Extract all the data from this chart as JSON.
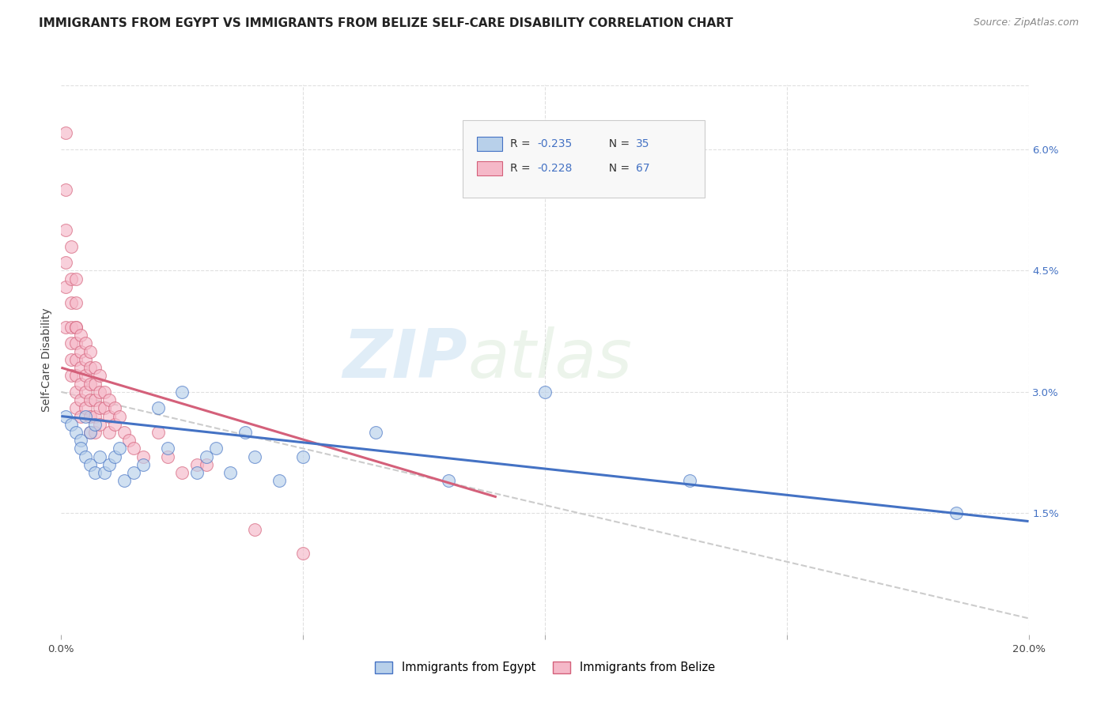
{
  "title": "IMMIGRANTS FROM EGYPT VS IMMIGRANTS FROM BELIZE SELF-CARE DISABILITY CORRELATION CHART",
  "source": "Source: ZipAtlas.com",
  "ylabel": "Self-Care Disability",
  "xlim": [
    0.0,
    0.2
  ],
  "ylim": [
    0.0,
    0.068
  ],
  "xticks": [
    0.0,
    0.05,
    0.1,
    0.15,
    0.2
  ],
  "xticklabels": [
    "0.0%",
    "",
    "",
    "",
    "20.0%"
  ],
  "yticks_right": [
    0.015,
    0.03,
    0.045,
    0.06
  ],
  "yticklabels_right": [
    "1.5%",
    "3.0%",
    "4.5%",
    "6.0%"
  ],
  "legend_R_egypt": "R = -0.235",
  "legend_N_egypt": "N = 35",
  "legend_R_belize": "R = -0.228",
  "legend_N_belize": "N = 67",
  "color_egypt": "#b8d0ea",
  "color_belize": "#f5b8c8",
  "color_egypt_line": "#4472c4",
  "color_belize_line": "#d4607a",
  "color_dashed": "#cccccc",
  "egypt_x": [
    0.001,
    0.002,
    0.003,
    0.004,
    0.004,
    0.005,
    0.005,
    0.006,
    0.006,
    0.007,
    0.007,
    0.008,
    0.009,
    0.01,
    0.011,
    0.012,
    0.013,
    0.015,
    0.017,
    0.02,
    0.022,
    0.025,
    0.028,
    0.03,
    0.032,
    0.035,
    0.038,
    0.04,
    0.045,
    0.05,
    0.065,
    0.08,
    0.1,
    0.13,
    0.185
  ],
  "egypt_y": [
    0.027,
    0.026,
    0.025,
    0.024,
    0.023,
    0.027,
    0.022,
    0.025,
    0.021,
    0.026,
    0.02,
    0.022,
    0.02,
    0.021,
    0.022,
    0.023,
    0.019,
    0.02,
    0.021,
    0.028,
    0.023,
    0.03,
    0.02,
    0.022,
    0.023,
    0.02,
    0.025,
    0.022,
    0.019,
    0.022,
    0.025,
    0.019,
    0.03,
    0.019,
    0.015
  ],
  "belize_x": [
    0.001,
    0.001,
    0.001,
    0.001,
    0.001,
    0.001,
    0.002,
    0.002,
    0.002,
    0.002,
    0.002,
    0.002,
    0.002,
    0.003,
    0.003,
    0.003,
    0.003,
    0.003,
    0.003,
    0.003,
    0.003,
    0.003,
    0.004,
    0.004,
    0.004,
    0.004,
    0.004,
    0.004,
    0.005,
    0.005,
    0.005,
    0.005,
    0.005,
    0.006,
    0.006,
    0.006,
    0.006,
    0.006,
    0.006,
    0.007,
    0.007,
    0.007,
    0.007,
    0.007,
    0.008,
    0.008,
    0.008,
    0.008,
    0.009,
    0.009,
    0.01,
    0.01,
    0.01,
    0.011,
    0.011,
    0.012,
    0.013,
    0.014,
    0.015,
    0.017,
    0.02,
    0.022,
    0.025,
    0.028,
    0.03,
    0.04,
    0.05
  ],
  "belize_y": [
    0.062,
    0.055,
    0.05,
    0.046,
    0.043,
    0.038,
    0.048,
    0.044,
    0.041,
    0.038,
    0.036,
    0.034,
    0.032,
    0.044,
    0.041,
    0.038,
    0.036,
    0.034,
    0.032,
    0.03,
    0.028,
    0.038,
    0.037,
    0.035,
    0.033,
    0.031,
    0.029,
    0.027,
    0.036,
    0.034,
    0.032,
    0.03,
    0.028,
    0.035,
    0.033,
    0.031,
    0.029,
    0.027,
    0.025,
    0.033,
    0.031,
    0.029,
    0.027,
    0.025,
    0.032,
    0.03,
    0.028,
    0.026,
    0.03,
    0.028,
    0.029,
    0.027,
    0.025,
    0.028,
    0.026,
    0.027,
    0.025,
    0.024,
    0.023,
    0.022,
    0.025,
    0.022,
    0.02,
    0.021,
    0.021,
    0.013,
    0.01
  ],
  "egypt_trend_x": [
    0.0,
    0.2
  ],
  "egypt_trend_y": [
    0.027,
    0.014
  ],
  "belize_trend_x": [
    0.0,
    0.09
  ],
  "belize_trend_y": [
    0.033,
    0.017
  ],
  "dashed_trend_x": [
    0.0,
    0.2
  ],
  "dashed_trend_y": [
    0.03,
    0.002
  ],
  "watermark_zip": "ZIP",
  "watermark_atlas": "atlas",
  "background_color": "#ffffff",
  "grid_color": "#e0e0e0",
  "title_fontsize": 11,
  "axis_label_fontsize": 10,
  "tick_fontsize": 9.5,
  "source_fontsize": 9
}
